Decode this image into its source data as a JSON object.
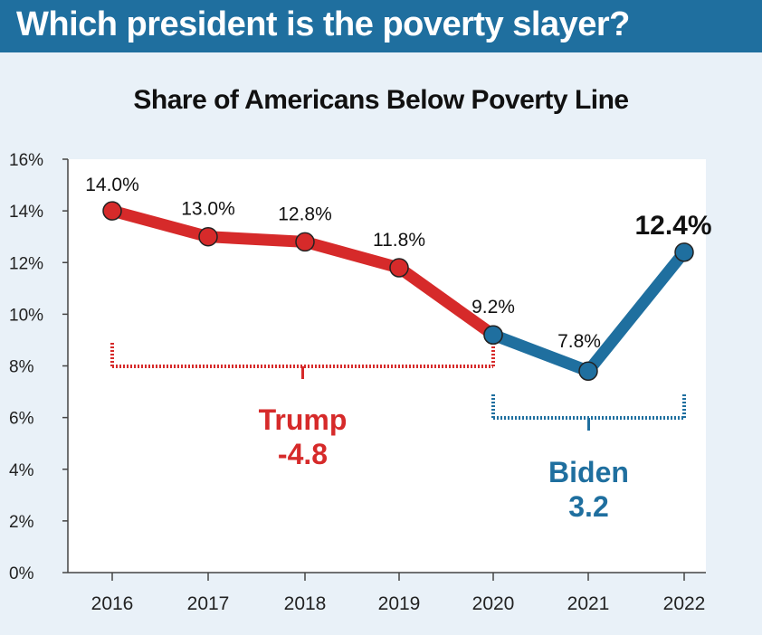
{
  "header": {
    "title": "Which president is the poverty slayer?"
  },
  "colors": {
    "banner": "#1f6f9f",
    "background": "#e9f1f8",
    "trump": "#d62a2a",
    "biden": "#1f6f9f"
  },
  "chart_data": {
    "type": "line",
    "title": "Share of Americans Below Poverty Line",
    "xlabel": "",
    "ylabel": "",
    "x": [
      "2016",
      "2017",
      "2018",
      "2019",
      "2020",
      "2021",
      "2022"
    ],
    "ylim": [
      0,
      16
    ],
    "yticks": [
      "0%",
      "2%",
      "4%",
      "6%",
      "8%",
      "10%",
      "12%",
      "14%",
      "16%"
    ],
    "grid": false,
    "series": [
      {
        "name": "Trump",
        "color": "#d62a2a",
        "x": [
          "2016",
          "2017",
          "2018",
          "2019",
          "2020"
        ],
        "values": [
          14.0,
          13.0,
          12.8,
          11.8,
          9.2
        ],
        "labels": [
          "14.0%",
          "13.0%",
          "12.8%",
          "11.8%",
          "9.2%"
        ]
      },
      {
        "name": "Biden",
        "color": "#1f6f9f",
        "x": [
          "2020",
          "2021",
          "2022"
        ],
        "values": [
          9.2,
          7.8,
          12.4
        ],
        "labels": [
          "",
          "7.8%",
          "12.4%"
        ]
      }
    ],
    "annotations": [
      {
        "name": "Trump",
        "change": "-4.8",
        "from": "2016",
        "to": "2020",
        "color": "#d62a2a"
      },
      {
        "name": "Biden",
        "change": "3.2",
        "from": "2020",
        "to": "2022",
        "color": "#1f6f9f"
      }
    ]
  }
}
